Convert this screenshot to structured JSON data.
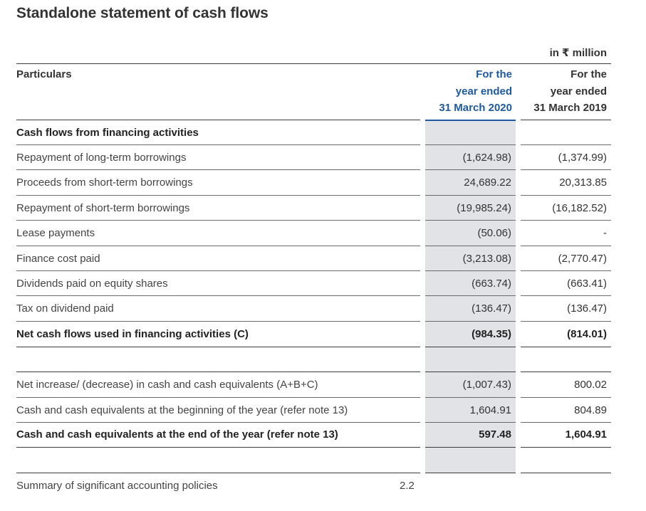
{
  "title": "Standalone statement of cash flows",
  "unit": "in ₹ million",
  "header": {
    "particulars": "Particulars",
    "col_current": [
      "For the",
      "year ended",
      "31 March 2020"
    ],
    "col_previous": [
      "For the",
      "year ended",
      "31 March 2019"
    ]
  },
  "section_financing": {
    "heading": "Cash flows from financing activities",
    "rows": [
      {
        "label": "Repayment of long-term borrowings",
        "fy2020": "(1,624.98)",
        "fy2019": "(1,374.99)"
      },
      {
        "label": "Proceeds from short-term borrowings",
        "fy2020": "24,689.22",
        "fy2019": "20,313.85"
      },
      {
        "label": "Repayment of short-term borrowings",
        "fy2020": "(19,985.24)",
        "fy2019": "(16,182.52)"
      },
      {
        "label": "Lease payments",
        "fy2020": "(50.06)",
        "fy2019": "-"
      },
      {
        "label": "Finance cost paid",
        "fy2020": "(3,213.08)",
        "fy2019": "(2,770.47)"
      },
      {
        "label": "Dividends paid on equity shares",
        "fy2020": "(663.74)",
        "fy2019": "(663.41)"
      },
      {
        "label": "Tax on dividend paid",
        "fy2020": "(136.47)",
        "fy2019": "(136.47)"
      }
    ],
    "total": {
      "label": "Net cash flows used in financing activities (C)",
      "fy2020": "(984.35)",
      "fy2019": "(814.01)"
    }
  },
  "section_cash": {
    "rows": [
      {
        "label": "Net increase/ (decrease) in cash and cash equivalents (A+B+C)",
        "fy2020": "(1,007.43)",
        "fy2019": "800.02"
      },
      {
        "label": "Cash and cash equivalents at the beginning of the year (refer note 13)",
        "fy2020": "1,604.91",
        "fy2019": "804.89"
      }
    ],
    "total": {
      "label": "Cash and cash equivalents at the end of the year (refer note 13)",
      "fy2020": "597.48",
      "fy2019": "1,604.91"
    }
  },
  "footer": {
    "label": "Summary of significant accounting policies",
    "note": "2.2"
  },
  "colors": {
    "current_year_header": "#1e5aa0",
    "shaded_column": "#e1e3e6"
  }
}
